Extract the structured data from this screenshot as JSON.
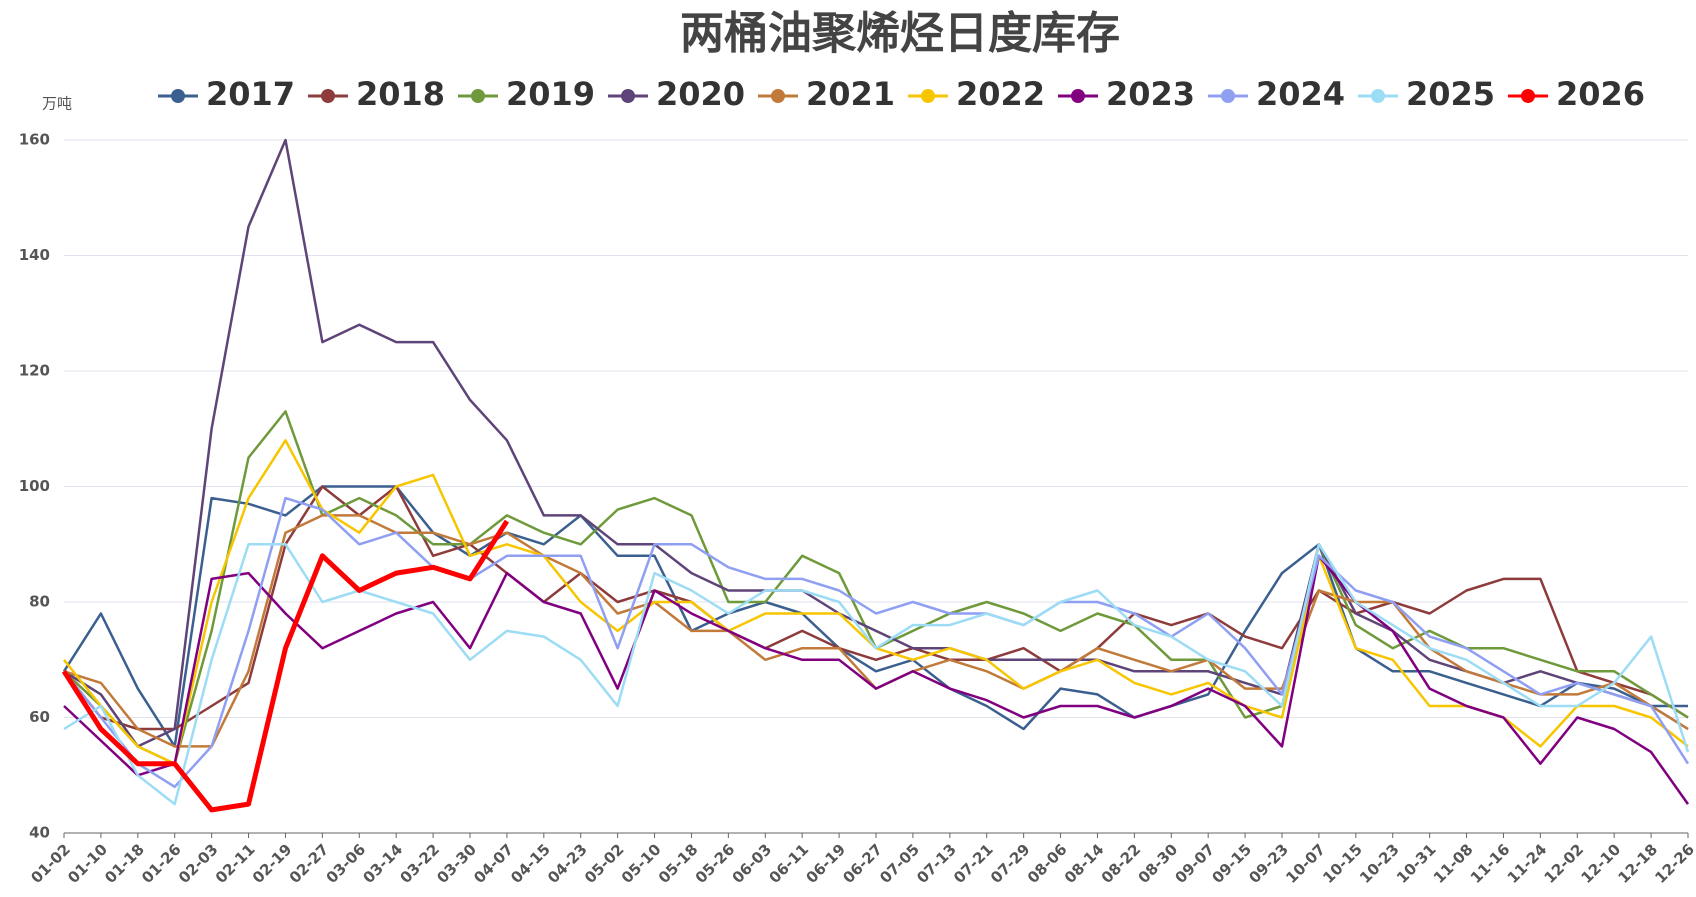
{
  "chart_data": {
    "type": "line",
    "title": "两桶油聚烯烃日度库存",
    "y_unit": "万吨",
    "categories": [
      "01-02",
      "01-10",
      "01-18",
      "01-26",
      "02-03",
      "02-11",
      "02-19",
      "02-27",
      "03-06",
      "03-14",
      "03-22",
      "03-30",
      "04-07",
      "04-15",
      "04-23",
      "05-02",
      "05-10",
      "05-18",
      "05-26",
      "06-03",
      "06-11",
      "06-19",
      "06-27",
      "07-05",
      "07-13",
      "07-21",
      "07-29",
      "08-06",
      "08-14",
      "08-22",
      "08-30",
      "09-07",
      "09-15",
      "09-23",
      "10-07",
      "10-15",
      "10-23",
      "10-31",
      "11-08",
      "11-16",
      "11-24",
      "12-02",
      "12-10",
      "12-18",
      "12-26"
    ],
    "ylim": [
      40,
      160
    ],
    "yticks": [
      40,
      60,
      80,
      100,
      120,
      140,
      160
    ],
    "grid": true,
    "series": [
      {
        "name": "2017",
        "color": "#3b5f8f",
        "values": [
          68,
          78,
          65,
          55,
          98,
          97,
          95,
          100,
          100,
          100,
          92,
          88,
          92,
          90,
          95,
          88,
          88,
          75,
          78,
          80,
          78,
          72,
          68,
          70,
          65,
          62,
          58,
          65,
          64,
          60,
          62,
          64,
          75,
          85,
          90,
          72,
          68,
          68,
          66,
          64,
          62,
          66,
          65,
          62,
          62
        ]
      },
      {
        "name": "2018",
        "color": "#8e3b3b",
        "values": [
          68,
          60,
          58,
          58,
          62,
          66,
          90,
          100,
          95,
          100,
          88,
          90,
          85,
          80,
          85,
          80,
          82,
          80,
          75,
          72,
          75,
          72,
          70,
          72,
          70,
          70,
          72,
          68,
          72,
          78,
          76,
          78,
          74,
          72,
          82,
          78,
          80,
          78,
          82,
          84,
          84,
          68,
          66,
          64,
          60
        ]
      },
      {
        "name": "2019",
        "color": "#6e9a3c",
        "values": [
          68,
          62,
          55,
          52,
          75,
          105,
          113,
          95,
          98,
          95,
          90,
          90,
          95,
          92,
          90,
          96,
          98,
          95,
          80,
          80,
          88,
          85,
          72,
          75,
          78,
          80,
          78,
          75,
          78,
          76,
          70,
          70,
          60,
          62,
          90,
          76,
          72,
          75,
          72,
          72,
          70,
          68,
          68,
          64,
          60
        ]
      },
      {
        "name": "2020",
        "color": "#5e4478",
        "values": [
          68,
          64,
          55,
          58,
          110,
          145,
          160,
          125,
          128,
          125,
          125,
          115,
          108,
          95,
          95,
          90,
          90,
          85,
          82,
          82,
          82,
          78,
          75,
          72,
          72,
          70,
          70,
          70,
          70,
          68,
          68,
          68,
          66,
          64,
          90,
          78,
          75,
          70,
          68,
          66,
          68,
          66,
          64,
          62,
          58
        ]
      },
      {
        "name": "2021",
        "color": "#c27a3a",
        "values": [
          68,
          66,
          58,
          55,
          55,
          68,
          92,
          95,
          95,
          92,
          92,
          90,
          92,
          88,
          85,
          78,
          80,
          75,
          75,
          70,
          72,
          72,
          65,
          68,
          70,
          68,
          65,
          68,
          72,
          70,
          68,
          70,
          65,
          65,
          82,
          80,
          80,
          72,
          68,
          66,
          64,
          64,
          66,
          62,
          58
        ]
      },
      {
        "name": "2022",
        "color": "#f7c600",
        "values": [
          70,
          62,
          55,
          52,
          80,
          98,
          108,
          96,
          92,
          100,
          102,
          88,
          90,
          88,
          80,
          75,
          80,
          80,
          75,
          78,
          78,
          78,
          72,
          70,
          72,
          70,
          65,
          68,
          70,
          66,
          64,
          66,
          62,
          60,
          88,
          72,
          70,
          62,
          62,
          60,
          55,
          62,
          62,
          60,
          55
        ]
      },
      {
        "name": "2023",
        "color": "#800080",
        "values": [
          62,
          56,
          50,
          52,
          84,
          85,
          78,
          72,
          75,
          78,
          80,
          72,
          85,
          80,
          78,
          65,
          82,
          78,
          75,
          72,
          70,
          70,
          65,
          68,
          65,
          63,
          60,
          62,
          62,
          60,
          62,
          65,
          62,
          55,
          88,
          80,
          75,
          65,
          62,
          60,
          52,
          60,
          58,
          54,
          45
        ]
      },
      {
        "name": "2024",
        "color": "#8f9ff2",
        "values": [
          68,
          60,
          52,
          48,
          55,
          75,
          98,
          96,
          90,
          92,
          86,
          84,
          88,
          88,
          88,
          72,
          90,
          90,
          86,
          84,
          84,
          82,
          78,
          80,
          78,
          78,
          76,
          80,
          80,
          78,
          74,
          78,
          72,
          64,
          88,
          82,
          80,
          74,
          72,
          68,
          64,
          66,
          64,
          62,
          52
        ]
      },
      {
        "name": "2025",
        "color": "#9ddcf5",
        "values": [
          58,
          62,
          50,
          45,
          70,
          90,
          90,
          80,
          82,
          80,
          78,
          70,
          75,
          74,
          70,
          62,
          85,
          82,
          78,
          82,
          82,
          80,
          72,
          76,
          76,
          78,
          76,
          80,
          82,
          76,
          74,
          70,
          68,
          62,
          90,
          80,
          76,
          72,
          70,
          66,
          62,
          62,
          66,
          74,
          54
        ]
      },
      {
        "name": "2026",
        "color": "#ff0000",
        "values": [
          68,
          58,
          52,
          52,
          44,
          45,
          72,
          88,
          82,
          85,
          86,
          84,
          94,
          null,
          null,
          null,
          null,
          null,
          null,
          null,
          null,
          null,
          null,
          null,
          null,
          null,
          null,
          null,
          null,
          null,
          null,
          null,
          null,
          null,
          null,
          null,
          null,
          null,
          null,
          null,
          null,
          null,
          null,
          null,
          null
        ]
      }
    ]
  }
}
